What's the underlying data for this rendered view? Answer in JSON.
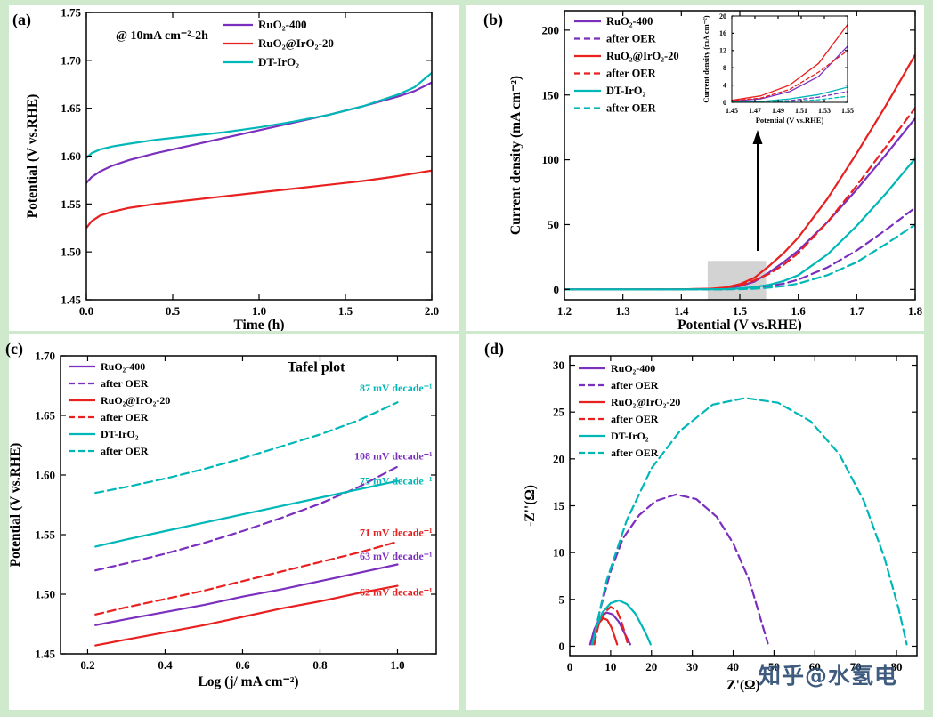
{
  "watermark": "知乎@水氢电",
  "panel_labels": [
    "(a)",
    "(b)",
    "(c)",
    "(d)"
  ],
  "colors": {
    "background": "#cfe9cd",
    "panel_bg": "#ffffff",
    "purple": "#7b2fbe",
    "red": "#e8201f",
    "teal": "#00b7b7",
    "black": "#000000",
    "highlight_gray": "#9e9e9e",
    "watermark_blue": "#2f4f75"
  },
  "chart_data": [
    {
      "id": "a",
      "type": "line",
      "xlabel": "Time (h)",
      "ylabel": "Potential (V vs.RHE)",
      "xlim": [
        0,
        2.0
      ],
      "ylim": [
        1.45,
        1.75
      ],
      "xticks": [
        "0.0",
        "0.5",
        "1.0",
        "1.5",
        "2.0"
      ],
      "yticks": [
        "1.45",
        "1.50",
        "1.55",
        "1.60",
        "1.65",
        "1.70",
        "1.75"
      ],
      "grid": false,
      "legend_position": "upper-center-right",
      "annotations": [
        {
          "text": "@ 10mA cm⁻²-2h",
          "x": 0.17,
          "y": 1.722,
          "color": "black",
          "size": 14,
          "anchor": "start"
        }
      ],
      "series": [
        {
          "label": "RuO₂-400",
          "color": "purple",
          "dash": false,
          "x": [
            0,
            0.03,
            0.08,
            0.15,
            0.25,
            0.4,
            0.6,
            0.8,
            1.0,
            1.2,
            1.4,
            1.6,
            1.8,
            1.9,
            2.0
          ],
          "y": [
            1.572,
            1.578,
            1.584,
            1.59,
            1.596,
            1.603,
            1.611,
            1.619,
            1.627,
            1.635,
            1.643,
            1.652,
            1.662,
            1.668,
            1.677
          ]
        },
        {
          "label": "RuO₂@IrO₂-20",
          "color": "red",
          "dash": false,
          "x": [
            0,
            0.03,
            0.08,
            0.15,
            0.25,
            0.4,
            0.6,
            0.8,
            1.0,
            1.2,
            1.4,
            1.6,
            1.8,
            2.0
          ],
          "y": [
            1.525,
            1.532,
            1.538,
            1.542,
            1.546,
            1.55,
            1.554,
            1.558,
            1.562,
            1.566,
            1.57,
            1.574,
            1.579,
            1.585
          ]
        },
        {
          "label": "DT-IrO₂",
          "color": "teal",
          "dash": false,
          "x": [
            0,
            0.03,
            0.08,
            0.15,
            0.25,
            0.4,
            0.6,
            0.8,
            1.0,
            1.2,
            1.4,
            1.6,
            1.8,
            1.9,
            2.0
          ],
          "y": [
            1.598,
            1.603,
            1.607,
            1.61,
            1.613,
            1.617,
            1.621,
            1.625,
            1.63,
            1.636,
            1.643,
            1.652,
            1.664,
            1.672,
            1.687
          ]
        }
      ]
    },
    {
      "id": "b",
      "type": "line",
      "xlabel": "Potential (V vs.RHE)",
      "ylabel": "Current density (mA cm⁻²)",
      "xlim": [
        1.2,
        1.8
      ],
      "ylim": [
        -8,
        215
      ],
      "xticks": [
        "1.2",
        "1.3",
        "1.4",
        "1.5",
        "1.6",
        "1.7",
        "1.8"
      ],
      "yticks": [
        "0",
        "50",
        "100",
        "150",
        "200"
      ],
      "grid": false,
      "legend_position": "upper-left",
      "highlight": {
        "x0": 1.445,
        "x1": 1.545,
        "y0": -8,
        "y1": 22
      },
      "annotations": [],
      "inset": {
        "xlabel": "Potential  (V vs.RHE)",
        "ylabel": "Current density (mA cm⁻²)",
        "xlim": [
          1.45,
          1.55
        ],
        "ylim": [
          0,
          20
        ],
        "xticks": [
          "1.45",
          "1.47",
          "1.49",
          "1.51",
          "1.53",
          "1.55"
        ],
        "yticks": [
          "0",
          "4",
          "8",
          "12",
          "16",
          "20"
        ]
      },
      "series": [
        {
          "label": "RuO₂-400",
          "color": "purple",
          "dash": false,
          "x": [
            1.2,
            1.3,
            1.4,
            1.45,
            1.475,
            1.5,
            1.525,
            1.55,
            1.575,
            1.6,
            1.65,
            1.7,
            1.75,
            1.8
          ],
          "y": [
            0,
            0,
            0.1,
            0.3,
            0.8,
            2.5,
            6,
            13,
            21,
            30,
            52,
            77,
            104,
            132
          ]
        },
        {
          "label": "after OER",
          "color": "purple",
          "dash": true,
          "x": [
            1.2,
            1.3,
            1.4,
            1.45,
            1.475,
            1.5,
            1.525,
            1.55,
            1.575,
            1.6,
            1.65,
            1.7,
            1.75,
            1.8
          ],
          "y": [
            0,
            0,
            0,
            0,
            0.1,
            0.4,
            1.2,
            2.5,
            4.5,
            7.5,
            17,
            30,
            46,
            63
          ]
        },
        {
          "label": "RuO₂@IrO₂-20",
          "color": "red",
          "dash": false,
          "x": [
            1.2,
            1.3,
            1.4,
            1.45,
            1.475,
            1.5,
            1.525,
            1.55,
            1.575,
            1.6,
            1.65,
            1.7,
            1.75,
            1.8
          ],
          "y": [
            0,
            0,
            0.1,
            0.5,
            1.5,
            4,
            9,
            18,
            28,
            40,
            70,
            105,
            142,
            181
          ]
        },
        {
          "label": "after OER",
          "color": "red",
          "dash": true,
          "x": [
            1.2,
            1.3,
            1.4,
            1.45,
            1.475,
            1.5,
            1.525,
            1.55,
            1.575,
            1.6,
            1.65,
            1.7,
            1.75,
            1.8
          ],
          "y": [
            0,
            0,
            0.1,
            0.4,
            1,
            3,
            7,
            12,
            19,
            28,
            52,
            80,
            110,
            140
          ]
        },
        {
          "label": "DT-IrO₂",
          "color": "teal",
          "dash": false,
          "x": [
            1.2,
            1.3,
            1.4,
            1.45,
            1.475,
            1.5,
            1.525,
            1.55,
            1.575,
            1.6,
            1.65,
            1.7,
            1.75,
            1.8
          ],
          "y": [
            0,
            0,
            0,
            0.1,
            0.2,
            0.8,
            1.8,
            3.5,
            6.5,
            11,
            27,
            49,
            74,
            101
          ]
        },
        {
          "label": "after OER",
          "color": "teal",
          "dash": true,
          "x": [
            1.2,
            1.3,
            1.4,
            1.45,
            1.475,
            1.5,
            1.525,
            1.55,
            1.575,
            1.6,
            1.65,
            1.7,
            1.75,
            1.8
          ],
          "y": [
            0,
            0,
            0,
            0,
            0.1,
            0.2,
            0.6,
            1.4,
            2.6,
            4.5,
            11,
            21,
            35,
            50
          ]
        }
      ]
    },
    {
      "id": "c",
      "type": "line",
      "title": "Tafel plot",
      "xlabel": "Log (j/ mA cm⁻²)",
      "ylabel": "Potential (V vs.RHE)",
      "xlim": [
        0.13,
        1.1
      ],
      "ylim": [
        1.45,
        1.7
      ],
      "xticks": [
        "0.2",
        "0.4",
        "0.6",
        "0.8",
        "1.0"
      ],
      "yticks": [
        "1.45",
        "1.50",
        "1.55",
        "1.60",
        "1.65",
        "1.70"
      ],
      "grid": false,
      "legend_position": "upper-left",
      "annotations": [
        {
          "text": "Tafel plot",
          "x": 0.79,
          "y": 1.687,
          "color": "black",
          "size": 16,
          "anchor": "middle"
        },
        {
          "text": "87 mV decade⁻¹",
          "x": 1.09,
          "y": 1.67,
          "color": "teal",
          "size": 12,
          "anchor": "end"
        },
        {
          "text": "108 mV decade⁻¹",
          "x": 1.09,
          "y": 1.613,
          "color": "purple",
          "size": 12,
          "anchor": "end"
        },
        {
          "text": "75 mV decade⁻¹",
          "x": 1.09,
          "y": 1.592,
          "color": "teal",
          "size": 12,
          "anchor": "end"
        },
        {
          "text": "71 mV decade⁻¹",
          "x": 1.09,
          "y": 1.549,
          "color": "red",
          "size": 12,
          "anchor": "end"
        },
        {
          "text": "63 mV decade⁻¹",
          "x": 1.09,
          "y": 1.529,
          "color": "purple",
          "size": 12,
          "anchor": "end"
        },
        {
          "text": "62 mV decade⁻¹",
          "x": 1.09,
          "y": 1.499,
          "color": "red",
          "size": 12,
          "anchor": "end"
        }
      ],
      "series": [
        {
          "label": "RuO₂-400",
          "color": "purple",
          "dash": false,
          "x": [
            0.22,
            0.3,
            0.4,
            0.5,
            0.6,
            0.7,
            0.8,
            0.9,
            1.0
          ],
          "y": [
            1.474,
            1.479,
            1.485,
            1.491,
            1.498,
            1.504,
            1.511,
            1.518,
            1.525
          ]
        },
        {
          "label": "after OER",
          "color": "purple",
          "dash": true,
          "x": [
            0.22,
            0.3,
            0.4,
            0.5,
            0.6,
            0.7,
            0.8,
            0.9,
            1.0
          ],
          "y": [
            1.52,
            1.526,
            1.534,
            1.543,
            1.553,
            1.564,
            1.576,
            1.59,
            1.607
          ]
        },
        {
          "label": "RuO₂@IrO₂-20",
          "color": "red",
          "dash": false,
          "x": [
            0.22,
            0.3,
            0.4,
            0.5,
            0.6,
            0.7,
            0.8,
            0.9,
            1.0
          ],
          "y": [
            1.457,
            1.462,
            1.468,
            1.474,
            1.481,
            1.488,
            1.494,
            1.501,
            1.507
          ]
        },
        {
          "label": "after OER",
          "color": "red",
          "dash": true,
          "x": [
            0.22,
            0.3,
            0.4,
            0.5,
            0.6,
            0.7,
            0.8,
            0.9,
            1.0
          ],
          "y": [
            1.483,
            1.489,
            1.496,
            1.503,
            1.511,
            1.519,
            1.527,
            1.535,
            1.544
          ]
        },
        {
          "label": "DT-IrO₂",
          "color": "teal",
          "dash": false,
          "x": [
            0.22,
            0.3,
            0.4,
            0.5,
            0.6,
            0.7,
            0.8,
            0.9,
            1.0
          ],
          "y": [
            1.54,
            1.546,
            1.553,
            1.56,
            1.567,
            1.574,
            1.581,
            1.588,
            1.595
          ]
        },
        {
          "label": "after OER",
          "color": "teal",
          "dash": true,
          "x": [
            0.22,
            0.3,
            0.4,
            0.5,
            0.6,
            0.7,
            0.8,
            0.9,
            1.0
          ],
          "y": [
            1.585,
            1.59,
            1.597,
            1.605,
            1.614,
            1.624,
            1.634,
            1.646,
            1.661
          ]
        }
      ]
    },
    {
      "id": "d",
      "type": "line",
      "xlabel": "Z'(Ω)",
      "ylabel": "-Z''(Ω)",
      "xlim": [
        0,
        85
      ],
      "ylim": [
        -1,
        31
      ],
      "xticks": [
        "0",
        "10",
        "20",
        "30",
        "40",
        "50",
        "60",
        "70",
        "80"
      ],
      "yticks": [
        "0",
        "5",
        "10",
        "15",
        "20",
        "25",
        "30"
      ],
      "grid": false,
      "legend_position": "upper-left",
      "annotations": [],
      "series": [
        {
          "label": "RuO₂-400",
          "color": "purple",
          "dash": false,
          "x": [
            5,
            6,
            7.5,
            9,
            10.5,
            12,
            13.5,
            14.8
          ],
          "y": [
            0.2,
            1.8,
            3.1,
            3.6,
            3.4,
            2.6,
            1.3,
            0.2
          ]
        },
        {
          "label": "after OER",
          "color": "purple",
          "dash": true,
          "x": [
            5.5,
            7.5,
            10,
            13,
            17,
            21,
            26,
            31,
            36,
            40,
            44,
            47,
            48.5
          ],
          "y": [
            0.2,
            4,
            8,
            11.5,
            14,
            15.5,
            16.2,
            15.7,
            13.8,
            11,
            7,
            2.5,
            0.3
          ]
        },
        {
          "label": "RuO₂@IrO₂-20",
          "color": "red",
          "dash": false,
          "x": [
            5.5,
            6.3,
            7.2,
            8.2,
            9.2,
            10.2,
            11,
            11.6
          ],
          "y": [
            0.2,
            1.5,
            2.5,
            3.0,
            2.8,
            2.0,
            1.0,
            0.2
          ]
        },
        {
          "label": "after OER",
          "color": "red",
          "dash": true,
          "x": [
            6,
            7,
            8.5,
            10,
            11.5,
            12.5,
            13.5,
            14.2
          ],
          "y": [
            0.2,
            2.2,
            3.6,
            4.2,
            3.8,
            2.8,
            1.4,
            0.2
          ]
        },
        {
          "label": "DT-IrO₂",
          "color": "teal",
          "dash": false,
          "x": [
            5.5,
            6.5,
            8,
            10,
            12,
            14,
            16,
            17.5,
            19,
            19.8
          ],
          "y": [
            0.2,
            2,
            3.6,
            4.6,
            4.9,
            4.5,
            3.5,
            2.3,
            1,
            0.2
          ]
        },
        {
          "label": "after OER",
          "color": "teal",
          "dash": true,
          "x": [
            5.5,
            9,
            14,
            20,
            27,
            35,
            43,
            51,
            59,
            66,
            72,
            77,
            80.5,
            82.5
          ],
          "y": [
            0.2,
            7,
            13.5,
            19,
            23,
            25.8,
            26.5,
            26,
            24,
            20.5,
            15.5,
            9.5,
            4,
            0.2
          ]
        }
      ]
    }
  ]
}
